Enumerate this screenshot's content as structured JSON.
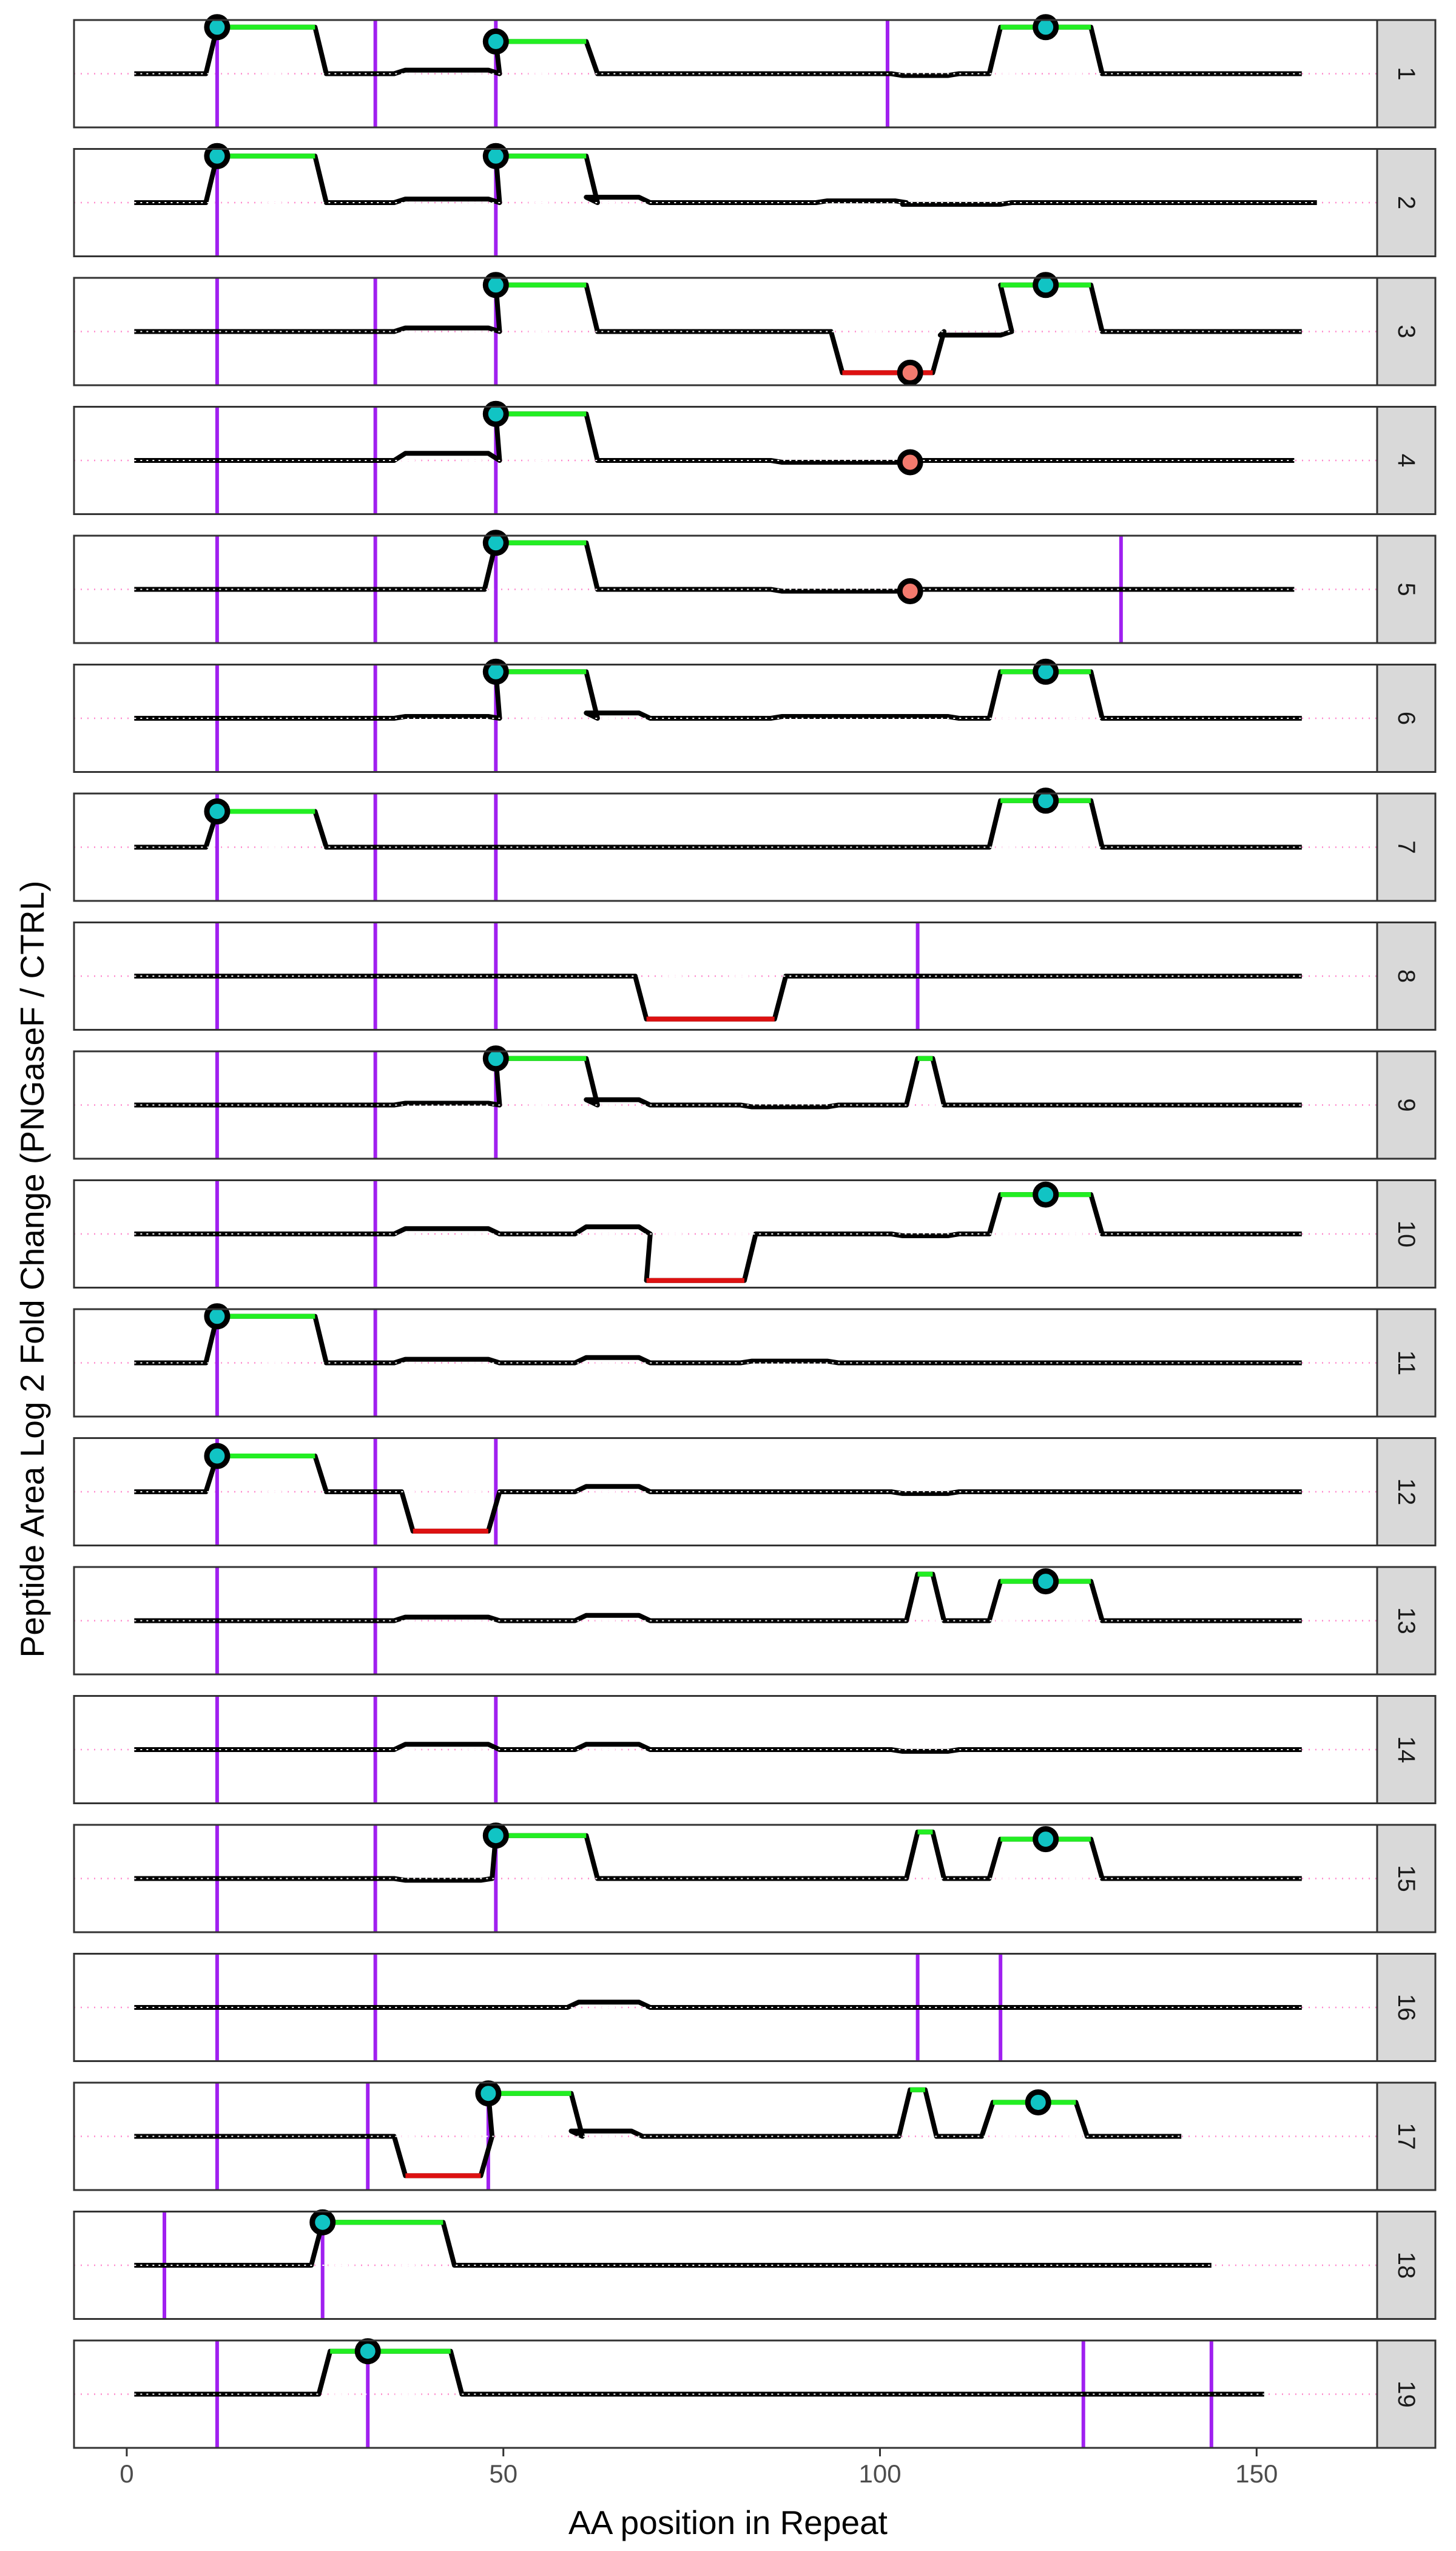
{
  "chart_data": {
    "type": "line",
    "xlabel": "AA position in Repeat",
    "ylabel": "Peptide Area Log 2 Fold Change (PNGaseF / CTRL)",
    "xlim": [
      -7,
      166
    ],
    "x_ticks": [
      0,
      50,
      100,
      150
    ],
    "ylim": [
      -1.5,
      1.5
    ],
    "grid": false,
    "colors": {
      "line": "#000000",
      "increase_segment": "#22ee22",
      "decrease_segment": "#dd1111",
      "glyco_site": "#a020f0",
      "marker_up": "#11c4c4",
      "marker_down": "#f47a6e",
      "zero_line": "#ff88cc",
      "strip_fill": "#d9d9d9"
    },
    "panels": [
      {
        "label": "1",
        "span": [
          1,
          156
        ],
        "sites": [
          12,
          33,
          49,
          101
        ],
        "segments": [
          [
            12,
            25,
            1.3,
            "up"
          ],
          [
            37,
            48,
            0.1,
            "none"
          ],
          [
            49,
            61,
            0.9,
            "up"
          ],
          [
            103,
            109,
            -0.05,
            "none"
          ],
          [
            116,
            128,
            1.3,
            "up"
          ]
        ],
        "markers": [
          [
            12,
            1.3,
            "up"
          ],
          [
            49,
            0.9,
            "up"
          ],
          [
            122,
            1.3,
            "up"
          ]
        ]
      },
      {
        "label": "2",
        "span": [
          1,
          158
        ],
        "sites": [
          12,
          49
        ],
        "segments": [
          [
            12,
            25,
            1.3,
            "up"
          ],
          [
            37,
            48,
            0.1,
            "none"
          ],
          [
            49,
            61,
            1.3,
            "up"
          ],
          [
            61,
            68,
            0.15,
            "none"
          ],
          [
            93,
            102,
            0.05,
            "none"
          ],
          [
            103,
            116,
            -0.05,
            "none"
          ]
        ],
        "markers": [
          [
            12,
            1.3,
            "up"
          ],
          [
            49,
            1.3,
            "up"
          ]
        ]
      },
      {
        "label": "3",
        "span": [
          1,
          156
        ],
        "sites": [
          12,
          33,
          49
        ],
        "segments": [
          [
            37,
            48,
            0.1,
            "none"
          ],
          [
            49,
            61,
            1.3,
            "up"
          ],
          [
            95,
            107,
            -1.15,
            "down"
          ],
          [
            108,
            116,
            -0.1,
            "none"
          ],
          [
            116,
            128,
            1.3,
            "up"
          ]
        ],
        "markers": [
          [
            49,
            1.3,
            "up"
          ],
          [
            104,
            -1.15,
            "down"
          ],
          [
            122,
            1.3,
            "up"
          ]
        ]
      },
      {
        "label": "4",
        "span": [
          1,
          155
        ],
        "sites": [
          12,
          33,
          49
        ],
        "segments": [
          [
            37,
            48,
            0.2,
            "none"
          ],
          [
            49,
            61,
            1.3,
            "up"
          ],
          [
            87,
            104,
            -0.05,
            "none"
          ]
        ],
        "markers": [
          [
            49,
            1.3,
            "up"
          ],
          [
            104,
            -0.05,
            "down"
          ]
        ]
      },
      {
        "label": "5",
        "span": [
          1,
          155
        ],
        "sites": [
          12,
          33,
          49,
          132
        ],
        "segments": [
          [
            49,
            61,
            1.3,
            "up"
          ],
          [
            87,
            104,
            -0.05,
            "none"
          ]
        ],
        "markers": [
          [
            49,
            1.3,
            "up"
          ],
          [
            104,
            -0.05,
            "down"
          ]
        ]
      },
      {
        "label": "6",
        "span": [
          1,
          156
        ],
        "sites": [
          12,
          33,
          49
        ],
        "segments": [
          [
            37,
            48,
            0.05,
            "none"
          ],
          [
            49,
            61,
            1.3,
            "up"
          ],
          [
            61,
            68,
            0.15,
            "none"
          ],
          [
            87,
            109,
            0.05,
            "none"
          ],
          [
            116,
            128,
            1.3,
            "up"
          ]
        ],
        "markers": [
          [
            49,
            1.3,
            "up"
          ],
          [
            122,
            1.3,
            "up"
          ]
        ]
      },
      {
        "label": "7",
        "span": [
          1,
          156
        ],
        "sites": [
          12,
          33,
          49
        ],
        "segments": [
          [
            12,
            25,
            1.0,
            "up"
          ],
          [
            116,
            128,
            1.3,
            "up"
          ]
        ],
        "markers": [
          [
            12,
            1.0,
            "up"
          ],
          [
            122,
            1.3,
            "up"
          ]
        ]
      },
      {
        "label": "8",
        "span": [
          1,
          156
        ],
        "sites": [
          12,
          33,
          49,
          105
        ],
        "segments": [
          [
            69,
            86,
            -1.2,
            "down"
          ]
        ],
        "markers": []
      },
      {
        "label": "9",
        "span": [
          1,
          156
        ],
        "sites": [
          12,
          33,
          49
        ],
        "segments": [
          [
            37,
            48,
            0.05,
            "none"
          ],
          [
            49,
            61,
            1.3,
            "up"
          ],
          [
            61,
            68,
            0.15,
            "none"
          ],
          [
            83,
            93,
            -0.05,
            "none"
          ],
          [
            105,
            107,
            1.3,
            "up"
          ]
        ],
        "markers": [
          [
            49,
            1.3,
            "up"
          ]
        ]
      },
      {
        "label": "10",
        "span": [
          1,
          156
        ],
        "sites": [
          12,
          33
        ],
        "segments": [
          [
            37,
            48,
            0.15,
            "none"
          ],
          [
            61,
            68,
            0.2,
            "none"
          ],
          [
            69,
            82,
            -1.3,
            "down"
          ],
          [
            103,
            109,
            -0.05,
            "none"
          ],
          [
            116,
            128,
            1.1,
            "up"
          ]
        ],
        "markers": [
          [
            122,
            1.1,
            "up"
          ]
        ]
      },
      {
        "label": "11",
        "span": [
          1,
          156
        ],
        "sites": [
          12,
          33
        ],
        "segments": [
          [
            12,
            25,
            1.3,
            "up"
          ],
          [
            37,
            48,
            0.1,
            "none"
          ],
          [
            61,
            68,
            0.15,
            "none"
          ],
          [
            83,
            93,
            0.05,
            "none"
          ]
        ],
        "markers": [
          [
            12,
            1.3,
            "up"
          ]
        ]
      },
      {
        "label": "12",
        "span": [
          1,
          156
        ],
        "sites": [
          12,
          33,
          49
        ],
        "segments": [
          [
            12,
            25,
            1.0,
            "up"
          ],
          [
            38,
            48,
            -1.1,
            "down"
          ],
          [
            61,
            68,
            0.15,
            "none"
          ],
          [
            103,
            109,
            -0.05,
            "none"
          ]
        ],
        "markers": [
          [
            12,
            1.0,
            "up"
          ]
        ]
      },
      {
        "label": "13",
        "span": [
          1,
          156
        ],
        "sites": [
          12,
          33
        ],
        "segments": [
          [
            37,
            48,
            0.1,
            "none"
          ],
          [
            61,
            68,
            0.15,
            "none"
          ],
          [
            105,
            107,
            1.3,
            "up"
          ],
          [
            116,
            128,
            1.1,
            "up"
          ]
        ],
        "markers": [
          [
            122,
            1.1,
            "up"
          ]
        ]
      },
      {
        "label": "14",
        "span": [
          1,
          156
        ],
        "sites": [
          12,
          33,
          49
        ],
        "segments": [
          [
            37,
            48,
            0.15,
            "none"
          ],
          [
            61,
            68,
            0.15,
            "none"
          ],
          [
            103,
            109,
            -0.05,
            "none"
          ]
        ],
        "markers": []
      },
      {
        "label": "15",
        "span": [
          1,
          156
        ],
        "sites": [
          12,
          33,
          49
        ],
        "segments": [
          [
            37,
            47,
            -0.05,
            "none"
          ],
          [
            49,
            61,
            1.2,
            "up"
          ],
          [
            105,
            107,
            1.3,
            "up"
          ],
          [
            116,
            128,
            1.1,
            "up"
          ]
        ],
        "markers": [
          [
            49,
            1.2,
            "up"
          ],
          [
            122,
            1.1,
            "up"
          ]
        ]
      },
      {
        "label": "16",
        "span": [
          1,
          156
        ],
        "sites": [
          12,
          33,
          105,
          116
        ],
        "segments": [
          [
            60,
            68,
            0.15,
            "none"
          ]
        ],
        "markers": []
      },
      {
        "label": "17",
        "span": [
          1,
          140
        ],
        "sites": [
          12,
          32,
          48
        ],
        "segments": [
          [
            37,
            47,
            -1.1,
            "down"
          ],
          [
            48,
            59,
            1.2,
            "up"
          ],
          [
            59,
            67,
            0.15,
            "none"
          ],
          [
            104,
            106,
            1.3,
            "up"
          ],
          [
            115,
            126,
            0.95,
            "up"
          ]
        ],
        "markers": [
          [
            48,
            1.2,
            "up"
          ],
          [
            121,
            0.95,
            "up"
          ]
        ]
      },
      {
        "label": "18",
        "span": [
          1,
          144
        ],
        "sites": [
          5,
          26
        ],
        "segments": [
          [
            26,
            42,
            1.2,
            "up"
          ]
        ],
        "markers": [
          [
            26,
            1.2,
            "up"
          ]
        ]
      },
      {
        "label": "19",
        "span": [
          1,
          151
        ],
        "sites": [
          12,
          32,
          127,
          144
        ],
        "segments": [
          [
            27,
            43,
            1.2,
            "up"
          ]
        ],
        "markers": [
          [
            32,
            1.2,
            "up"
          ]
        ]
      }
    ]
  }
}
